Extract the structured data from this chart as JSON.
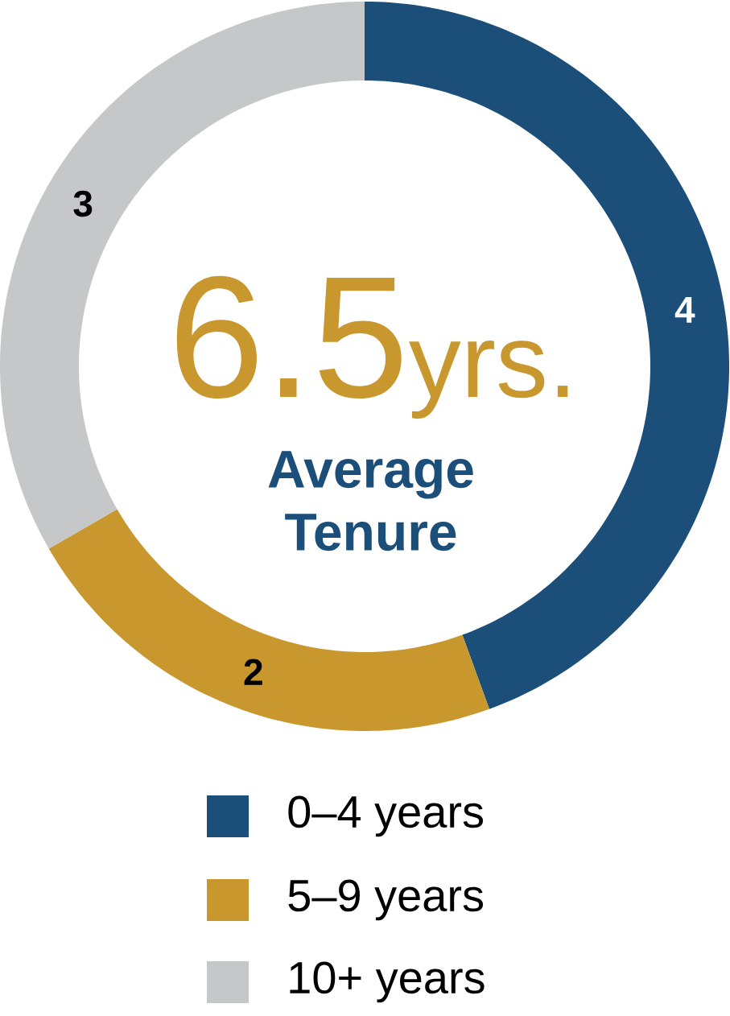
{
  "chart_data": {
    "type": "donut",
    "categories": [
      "0–4 years",
      "5–9 years",
      "10+ years"
    ],
    "values": [
      4,
      2,
      3
    ],
    "colors": [
      "#1b4f7a",
      "#c8972e",
      "#c6c7c9"
    ],
    "data_labels": true,
    "legend": "bottom",
    "annotations": [
      "6.5",
      "yrs.",
      "Average Tenure"
    ]
  }
}
